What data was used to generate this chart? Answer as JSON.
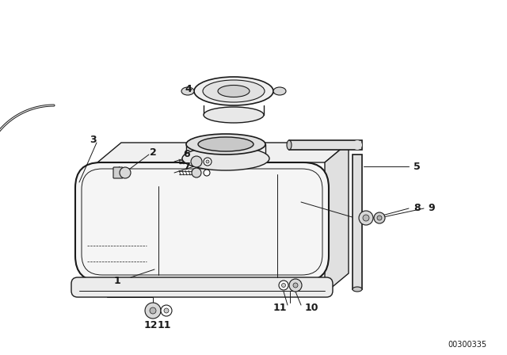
{
  "background_color": "#ffffff",
  "diagram_code": "00300335",
  "line_color": "#1a1a1a",
  "fig_width": 6.4,
  "fig_height": 4.48,
  "dpi": 100
}
